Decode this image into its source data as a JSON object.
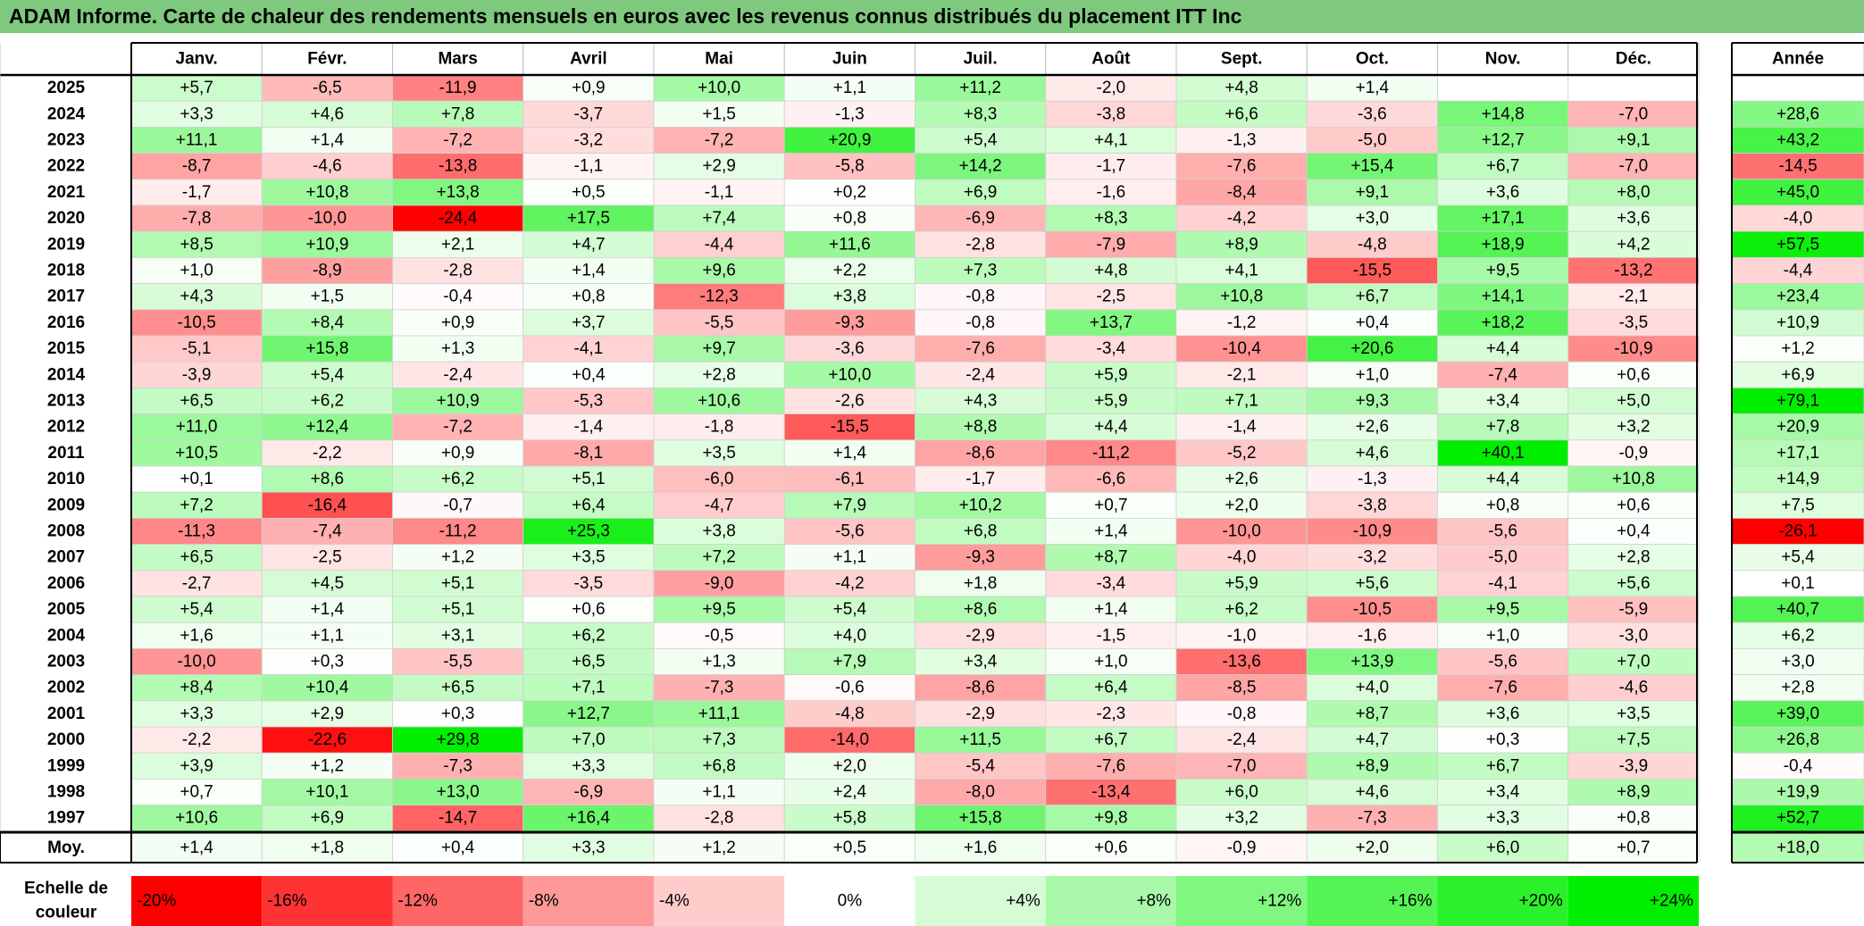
{
  "title": "ADAM Informe. Carte de chaleur des rendements mensuels en euros avec les revenus connus distribués du placement ITT Inc",
  "chart_data": {
    "type": "heatmap",
    "title": "ADAM Informe. Carte de chaleur des rendements mensuels en euros avec les revenus connus distribués du placement ITT Inc",
    "columns": [
      "Janv.",
      "Févr.",
      "Mars",
      "Avril",
      "Mai",
      "Juin",
      "Juil.",
      "Août",
      "Sept.",
      "Oct.",
      "Nov.",
      "Déc."
    ],
    "year_header": "Année",
    "rows": [
      {
        "year": "2025",
        "months": [
          "+5,7",
          "-6,5",
          "-11,9",
          "+0,9",
          "+10,0",
          "+1,1",
          "+11,2",
          "-2,0",
          "+4,8",
          "+1,4",
          "",
          ""
        ],
        "annual": ""
      },
      {
        "year": "2024",
        "months": [
          "+3,3",
          "+4,6",
          "+7,8",
          "-3,7",
          "+1,5",
          "-1,3",
          "+8,3",
          "-3,8",
          "+6,6",
          "-3,6",
          "+14,8",
          "-7,0"
        ],
        "annual": "+28,6"
      },
      {
        "year": "2023",
        "months": [
          "+11,1",
          "+1,4",
          "-7,2",
          "-3,2",
          "-7,2",
          "+20,9",
          "+5,4",
          "+4,1",
          "-1,3",
          "-5,0",
          "+12,7",
          "+9,1"
        ],
        "annual": "+43,2"
      },
      {
        "year": "2022",
        "months": [
          "-8,7",
          "-4,6",
          "-13,8",
          "-1,1",
          "+2,9",
          "-5,8",
          "+14,2",
          "-1,7",
          "-7,6",
          "+15,4",
          "+6,7",
          "-7,0"
        ],
        "annual": "-14,5"
      },
      {
        "year": "2021",
        "months": [
          "-1,7",
          "+10,8",
          "+13,8",
          "+0,5",
          "-1,1",
          "+0,2",
          "+6,9",
          "-1,6",
          "-8,4",
          "+9,1",
          "+3,6",
          "+8,0"
        ],
        "annual": "+45,0"
      },
      {
        "year": "2020",
        "months": [
          "-7,8",
          "-10,0",
          "-24,4",
          "+17,5",
          "+7,4",
          "+0,8",
          "-6,9",
          "+8,3",
          "-4,2",
          "+3,0",
          "+17,1",
          "+3,6"
        ],
        "annual": "-4,0"
      },
      {
        "year": "2019",
        "months": [
          "+8,5",
          "+10,9",
          "+2,1",
          "+4,7",
          "-4,4",
          "+11,6",
          "-2,8",
          "-7,9",
          "+8,9",
          "-4,8",
          "+18,9",
          "+4,2"
        ],
        "annual": "+57,5"
      },
      {
        "year": "2018",
        "months": [
          "+1,0",
          "-8,9",
          "-2,8",
          "+1,4",
          "+9,6",
          "+2,2",
          "+7,3",
          "+4,8",
          "+4,1",
          "-15,5",
          "+9,5",
          "-13,2"
        ],
        "annual": "-4,4"
      },
      {
        "year": "2017",
        "months": [
          "+4,3",
          "+1,5",
          "-0,4",
          "+0,8",
          "-12,3",
          "+3,8",
          "-0,8",
          "-2,5",
          "+10,8",
          "+6,7",
          "+14,1",
          "-2,1"
        ],
        "annual": "+23,4"
      },
      {
        "year": "2016",
        "months": [
          "-10,5",
          "+8,4",
          "+0,9",
          "+3,7",
          "-5,5",
          "-9,3",
          "-0,8",
          "+13,7",
          "-1,2",
          "+0,4",
          "+18,2",
          "-3,5"
        ],
        "annual": "+10,9"
      },
      {
        "year": "2015",
        "months": [
          "-5,1",
          "+15,8",
          "+1,3",
          "-4,1",
          "+9,7",
          "-3,6",
          "-7,6",
          "-3,4",
          "-10,4",
          "+20,6",
          "+4,4",
          "-10,9"
        ],
        "annual": "+1,2"
      },
      {
        "year": "2014",
        "months": [
          "-3,9",
          "+5,4",
          "-2,4",
          "+0,4",
          "+2,8",
          "+10,0",
          "-2,4",
          "+5,9",
          "-2,1",
          "+1,0",
          "-7,4",
          "+0,6"
        ],
        "annual": "+6,9"
      },
      {
        "year": "2013",
        "months": [
          "+6,5",
          "+6,2",
          "+10,9",
          "-5,3",
          "+10,6",
          "-2,6",
          "+4,3",
          "+5,9",
          "+7,1",
          "+9,3",
          "+3,4",
          "+5,0"
        ],
        "annual": "+79,1"
      },
      {
        "year": "2012",
        "months": [
          "+11,0",
          "+12,4",
          "-7,2",
          "-1,4",
          "-1,8",
          "-15,5",
          "+8,8",
          "+4,4",
          "-1,4",
          "+2,6",
          "+7,8",
          "+3,2"
        ],
        "annual": "+20,9"
      },
      {
        "year": "2011",
        "months": [
          "+10,5",
          "-2,2",
          "+0,9",
          "-8,1",
          "+3,5",
          "+1,4",
          "-8,6",
          "-11,2",
          "-5,2",
          "+4,6",
          "+40,1",
          "-0,9"
        ],
        "annual": "+17,1"
      },
      {
        "year": "2010",
        "months": [
          "+0,1",
          "+8,6",
          "+6,2",
          "+5,1",
          "-6,0",
          "-6,1",
          "-1,7",
          "-6,6",
          "+2,6",
          "-1,3",
          "+4,4",
          "+10,8"
        ],
        "annual": "+14,9"
      },
      {
        "year": "2009",
        "months": [
          "+7,2",
          "-16,4",
          "-0,7",
          "+6,4",
          "-4,7",
          "+7,9",
          "+10,2",
          "+0,7",
          "+2,0",
          "-3,8",
          "+0,8",
          "+0,6"
        ],
        "annual": "+7,5"
      },
      {
        "year": "2008",
        "months": [
          "-11,3",
          "-7,4",
          "-11,2",
          "+25,3",
          "+3,8",
          "-5,6",
          "+6,8",
          "+1,4",
          "-10,0",
          "-10,9",
          "-5,6",
          "+0,4"
        ],
        "annual": "-26,1"
      },
      {
        "year": "2007",
        "months": [
          "+6,5",
          "-2,5",
          "+1,2",
          "+3,5",
          "+7,2",
          "+1,1",
          "-9,3",
          "+8,7",
          "-4,0",
          "-3,2",
          "-5,0",
          "+2,8"
        ],
        "annual": "+5,4"
      },
      {
        "year": "2006",
        "months": [
          "-2,7",
          "+4,5",
          "+5,1",
          "-3,5",
          "-9,0",
          "-4,2",
          "+1,8",
          "-3,4",
          "+5,9",
          "+5,6",
          "-4,1",
          "+5,6"
        ],
        "annual": "+0,1"
      },
      {
        "year": "2005",
        "months": [
          "+5,4",
          "+1,4",
          "+5,1",
          "+0,6",
          "+9,5",
          "+5,4",
          "+8,6",
          "+1,4",
          "+6,2",
          "-10,5",
          "+9,5",
          "-5,9"
        ],
        "annual": "+40,7"
      },
      {
        "year": "2004",
        "months": [
          "+1,6",
          "+1,1",
          "+3,1",
          "+6,2",
          "-0,5",
          "+4,0",
          "-2,9",
          "-1,5",
          "-1,0",
          "-1,6",
          "+1,0",
          "-3,0"
        ],
        "annual": "+6,2"
      },
      {
        "year": "2003",
        "months": [
          "-10,0",
          "+0,3",
          "-5,5",
          "+6,5",
          "+1,3",
          "+7,9",
          "+3,4",
          "+1,0",
          "-13,6",
          "+13,9",
          "-5,6",
          "+7,0"
        ],
        "annual": "+3,0"
      },
      {
        "year": "2002",
        "months": [
          "+8,4",
          "+10,4",
          "+6,5",
          "+7,1",
          "-7,3",
          "-0,6",
          "-8,6",
          "+6,4",
          "-8,5",
          "+4,0",
          "-7,6",
          "-4,6"
        ],
        "annual": "+2,8"
      },
      {
        "year": "2001",
        "months": [
          "+3,3",
          "+2,9",
          "+0,3",
          "+12,7",
          "+11,1",
          "-4,8",
          "-2,9",
          "-2,3",
          "-0,8",
          "+8,7",
          "+3,6",
          "+3,5"
        ],
        "annual": "+39,0"
      },
      {
        "year": "2000",
        "months": [
          "-2,2",
          "-22,6",
          "+29,8",
          "+7,0",
          "+7,3",
          "-14,0",
          "+11,5",
          "+6,7",
          "-2,4",
          "+4,7",
          "+0,3",
          "+7,5"
        ],
        "annual": "+26,8"
      },
      {
        "year": "1999",
        "months": [
          "+3,9",
          "+1,2",
          "-7,3",
          "+3,3",
          "+6,8",
          "+2,0",
          "-5,4",
          "-7,6",
          "-7,0",
          "+8,9",
          "+6,7",
          "-3,9"
        ],
        "annual": "-0,4"
      },
      {
        "year": "1998",
        "months": [
          "+0,7",
          "+10,1",
          "+13,0",
          "-6,9",
          "+1,1",
          "+2,4",
          "-8,0",
          "-13,4",
          "+6,0",
          "+4,6",
          "+3,4",
          "+8,9"
        ],
        "annual": "+19,9"
      },
      {
        "year": "1997",
        "months": [
          "+10,6",
          "+6,9",
          "-14,7",
          "+16,4",
          "-2,8",
          "+5,8",
          "+15,8",
          "+9,8",
          "+3,2",
          "-7,3",
          "+3,3",
          "+0,8"
        ],
        "annual": "+52,7"
      }
    ],
    "average_label": "Moy.",
    "averages": [
      "+1,4",
      "+1,8",
      "+0,4",
      "+3,3",
      "+1,2",
      "+0,5",
      "+1,6",
      "+0,6",
      "-0,9",
      "+2,0",
      "+6,0",
      "+0,7"
    ],
    "average_annual": "+18,0",
    "scale_label_line1": "Echelle de",
    "scale_label_line2": "couleur",
    "scale": [
      {
        "label": "-20%",
        "value": -20
      },
      {
        "label": "-16%",
        "value": -16
      },
      {
        "label": "-12%",
        "value": -12
      },
      {
        "label": "-8%",
        "value": -8
      },
      {
        "label": "-4%",
        "value": -4
      },
      {
        "label": "0%",
        "value": 0
      },
      {
        "label": "+4%",
        "value": 4
      },
      {
        "label": "+8%",
        "value": 8
      },
      {
        "label": "+12%",
        "value": 12
      },
      {
        "label": "+16%",
        "value": 16
      },
      {
        "label": "+20%",
        "value": 20
      },
      {
        "label": "+24%",
        "value": 24
      }
    ],
    "colors": {
      "negative": "#ff0000",
      "positive": "#00ee00",
      "neutral": "#ffffff",
      "title_bg": "#7fc97f"
    }
  }
}
